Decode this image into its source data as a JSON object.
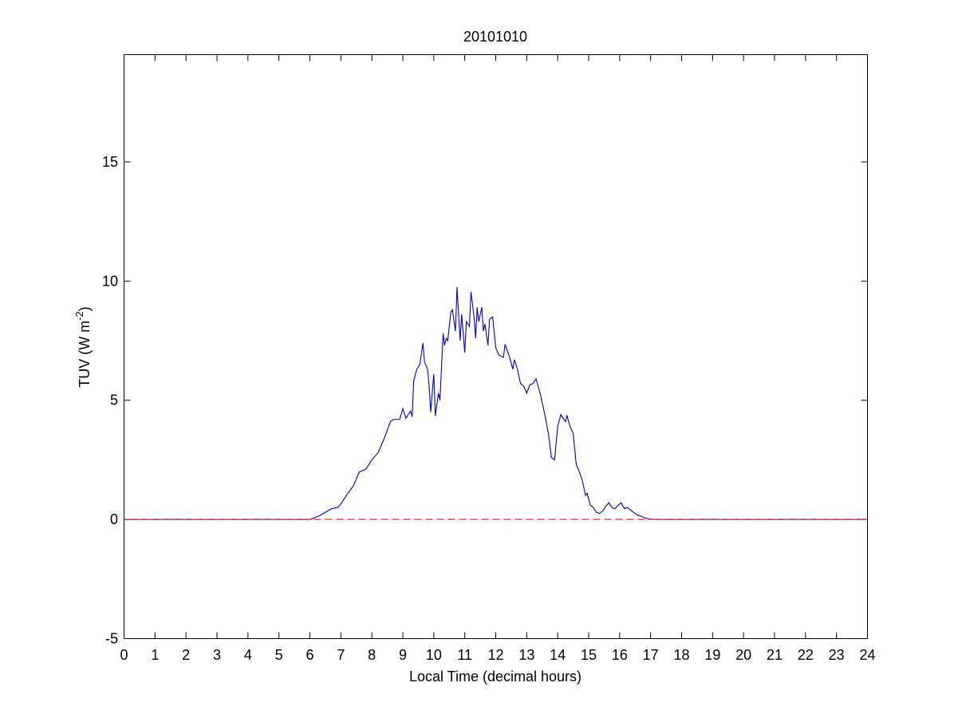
{
  "chart_data": {
    "type": "line",
    "title": "20101010",
    "xlabel": "Local Time (decimal hours)",
    "ylabel_main": "TUV (W m",
    "ylabel_sup": "-2",
    "ylabel_close": ")",
    "xlim": [
      0,
      24
    ],
    "ylim": [
      -5,
      19.5
    ],
    "xticks": [
      "0",
      "1",
      "2",
      "3",
      "4",
      "5",
      "6",
      "7",
      "8",
      "9",
      "10",
      "11",
      "12",
      "13",
      "14",
      "15",
      "16",
      "17",
      "18",
      "19",
      "20",
      "21",
      "22",
      "23",
      "24"
    ],
    "yticks": [
      "-5",
      "0",
      "5",
      "10",
      "15"
    ],
    "grid": false,
    "colors": {
      "series": "#0000b4",
      "baseline": "#ff0000",
      "axis": "#000000"
    },
    "series": [
      {
        "style": "solid",
        "x": [
          0,
          6.0,
          6.1,
          6.3,
          6.5,
          6.7,
          6.9,
          7.0,
          7.2,
          7.4,
          7.6,
          7.8,
          8.0,
          8.2,
          8.4,
          8.6,
          8.7,
          8.9,
          9.0,
          9.1,
          9.25,
          9.3,
          9.35,
          9.45,
          9.5,
          9.55,
          9.65,
          9.7,
          9.8,
          9.85,
          9.9,
          10.0,
          10.05,
          10.15,
          10.2,
          10.3,
          10.35,
          10.4,
          10.45,
          10.55,
          10.6,
          10.7,
          10.75,
          10.85,
          10.9,
          11.0,
          11.05,
          11.15,
          11.2,
          11.3,
          11.35,
          11.4,
          11.45,
          11.55,
          11.6,
          11.65,
          11.75,
          11.8,
          11.9,
          12.0,
          12.1,
          12.25,
          12.3,
          12.45,
          12.55,
          12.6,
          12.7,
          12.8,
          12.9,
          13.0,
          13.1,
          13.2,
          13.3,
          13.45,
          13.6,
          13.7,
          13.8,
          13.9,
          14.0,
          14.1,
          14.15,
          14.2,
          14.25,
          14.3,
          14.4,
          14.5,
          14.6,
          14.7,
          14.8,
          14.9,
          14.95,
          15.05,
          15.15,
          15.25,
          15.35,
          15.45,
          15.55,
          15.65,
          15.75,
          15.85,
          15.95,
          16.05,
          16.15,
          16.25,
          16.35,
          16.45,
          16.55,
          16.65,
          16.75,
          16.85,
          16.95,
          17.05,
          17.2,
          17.4,
          24
        ],
        "y": [
          0,
          0,
          0.05,
          0.15,
          0.3,
          0.45,
          0.5,
          0.65,
          1.05,
          1.4,
          2.0,
          2.1,
          2.5,
          2.8,
          3.4,
          4.1,
          4.2,
          4.2,
          4.65,
          4.25,
          4.55,
          4.3,
          5.8,
          6.3,
          6.4,
          6.5,
          7.4,
          6.6,
          6.3,
          5.6,
          4.5,
          6.1,
          4.35,
          5.3,
          5.0,
          7.8,
          7.3,
          7.6,
          7.5,
          8.7,
          8.8,
          7.9,
          9.75,
          7.5,
          8.6,
          7.0,
          8.3,
          8.1,
          9.55,
          8.5,
          7.6,
          8.9,
          8.3,
          8.9,
          7.9,
          8.2,
          7.3,
          8.4,
          8.5,
          7.2,
          6.9,
          6.8,
          7.35,
          6.8,
          6.3,
          6.7,
          6.3,
          5.7,
          5.6,
          5.3,
          5.65,
          5.7,
          5.9,
          5.2,
          4.3,
          3.6,
          2.6,
          2.5,
          3.9,
          4.4,
          4.3,
          4.2,
          4.1,
          4.35,
          3.9,
          3.6,
          2.3,
          2.0,
          1.6,
          1.0,
          1.1,
          0.6,
          0.5,
          0.3,
          0.25,
          0.35,
          0.55,
          0.7,
          0.5,
          0.45,
          0.6,
          0.7,
          0.45,
          0.5,
          0.4,
          0.3,
          0.2,
          0.15,
          0.1,
          0.05,
          0.02,
          0.01,
          0,
          0,
          0
        ]
      },
      {
        "style": "dashed",
        "x": [
          0,
          24
        ],
        "y": [
          0,
          0
        ]
      }
    ]
  }
}
